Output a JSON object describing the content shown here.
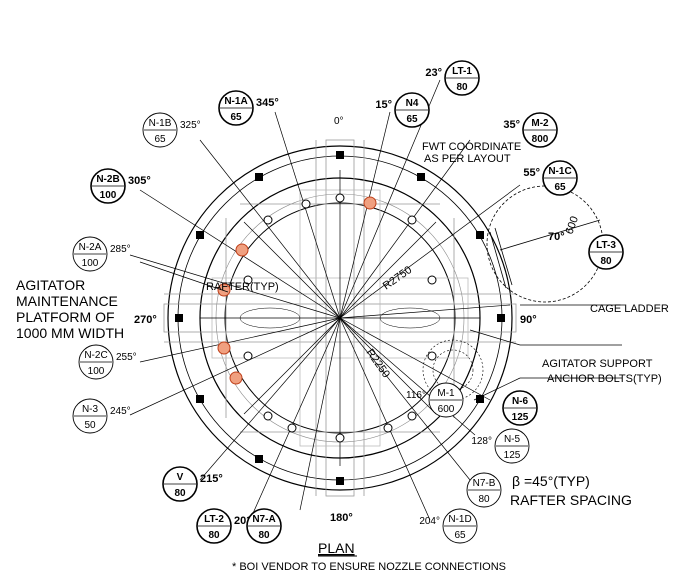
{
  "plan": {
    "title": "PLAN",
    "note": "* BOI VENDOR TO ENSURE NOZZLE CONNECTIONS"
  },
  "orientation": {
    "deg0": "0°",
    "deg90": "90°",
    "deg180": "180°",
    "deg270": "270°"
  },
  "dimensions": {
    "r2750": "R2750",
    "r2250": "R2250",
    "ladder_width": "600",
    "ladder_angle": "70°"
  },
  "notes": {
    "fwt_1": "FWT COORDINATE",
    "fwt_2": "AS PER LAYOUT",
    "rafter_typ": "RAFTER(TYP)",
    "cage_ladder": "CAGE LADDER",
    "agitator_support": "AGITATOR SUPPORT",
    "anchor_bolts": "ANCHOR BOLTS(TYP)",
    "platform_1": "AGITATOR",
    "platform_2": "MAINTENANCE",
    "platform_3": "PLATFORM OF",
    "platform_4": "1000 MM WIDTH",
    "rafter_1": "β =45°(TYP)",
    "rafter_2": "RAFTER SPACING"
  },
  "nozzles": [
    {
      "tag": "N-1A",
      "size": "65",
      "angle": "345°",
      "bold": true
    },
    {
      "tag": "N-1B",
      "size": "65",
      "angle": "325°",
      "bold": false
    },
    {
      "tag": "N-2B",
      "size": "100",
      "angle": "305°",
      "bold": true
    },
    {
      "tag": "N-2A",
      "size": "100",
      "angle": "285°",
      "bold": false
    },
    {
      "tag": "N-2C",
      "size": "100",
      "angle": "255°",
      "bold": false
    },
    {
      "tag": "N-3",
      "size": "50",
      "angle": "245°",
      "bold": false
    },
    {
      "tag": "V",
      "size": "80",
      "angle": "215°",
      "bold": true
    },
    {
      "tag": "LT-2",
      "size": "80",
      "angle": "203°",
      "bold": true
    },
    {
      "tag": "N7-A",
      "size": "80",
      "angle": "",
      "bold": true
    },
    {
      "tag": "N-1D",
      "size": "65",
      "angle": "204°",
      "bold": false
    },
    {
      "tag": "N7-B",
      "size": "80",
      "angle": "",
      "bold": false
    },
    {
      "tag": "N-5",
      "size": "125",
      "angle": "128°",
      "bold": false
    },
    {
      "tag": "M-1",
      "size": "600",
      "angle": "116°",
      "bold": false
    },
    {
      "tag": "N-6",
      "size": "125",
      "angle": "",
      "bold": true
    },
    {
      "tag": "LT-3",
      "size": "80",
      "angle": "",
      "bold": true
    },
    {
      "tag": "N-1C",
      "size": "65",
      "angle": "55°",
      "bold": true
    },
    {
      "tag": "M-2",
      "size": "800",
      "angle": "35°",
      "bold": true
    },
    {
      "tag": "LT-1",
      "size": "80",
      "angle": "23°",
      "bold": true
    },
    {
      "tag": "N4",
      "size": "65",
      "angle": "15°",
      "bold": true
    }
  ]
}
